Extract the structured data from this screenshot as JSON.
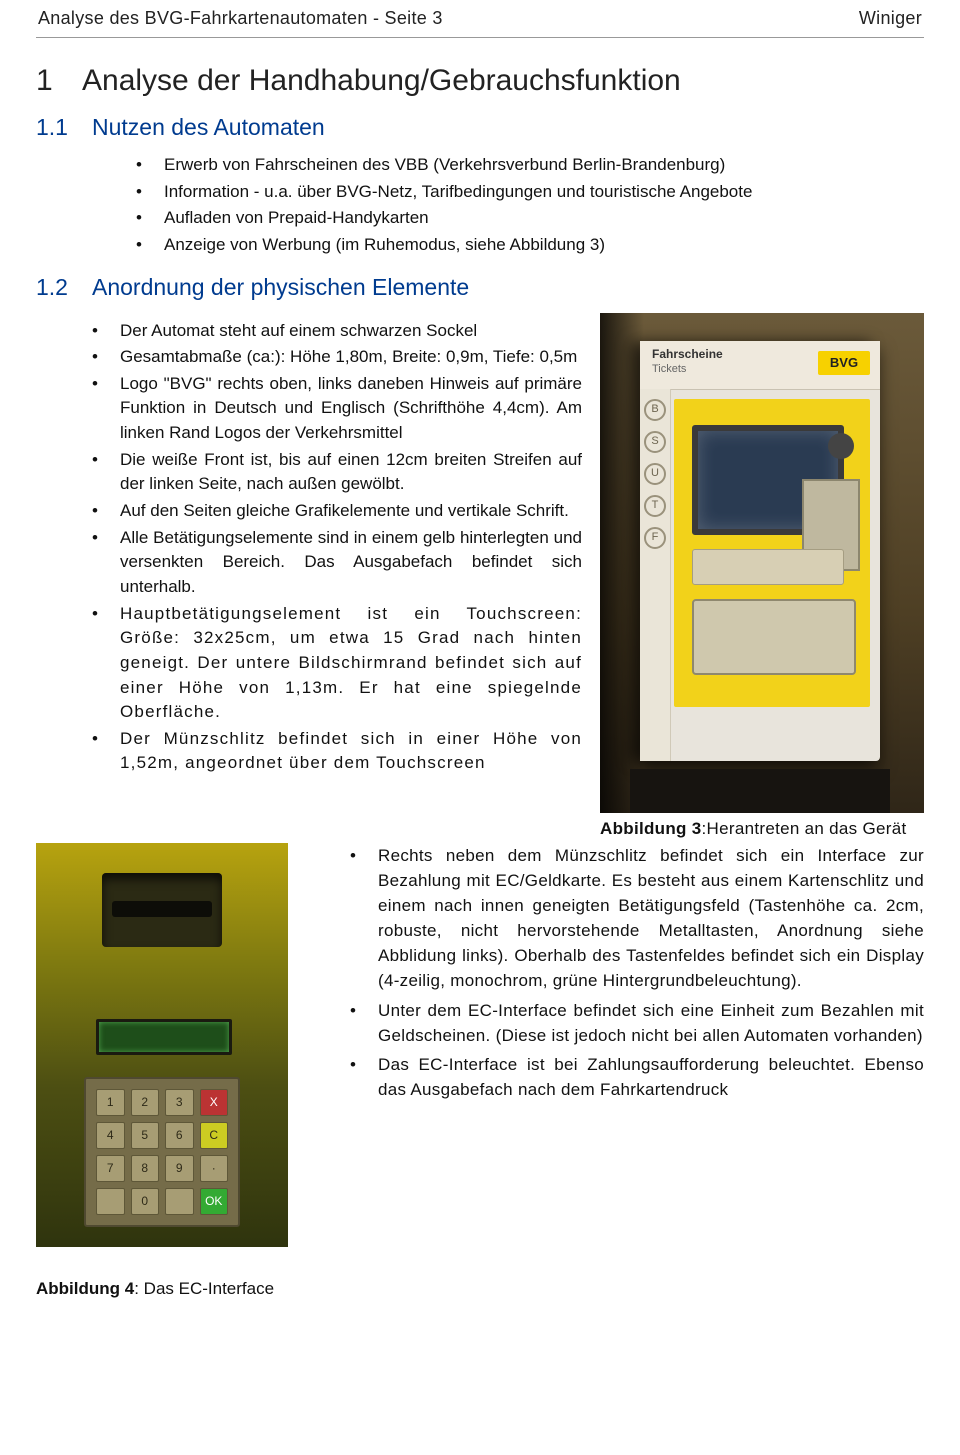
{
  "header": {
    "left": "Analyse des BVG-Fahrkartenautomaten - Seite 3",
    "right": "Winiger"
  },
  "h1": {
    "num": "1",
    "text": "Analyse der Handhabung/Gebrauchsfunktion"
  },
  "sec11": {
    "num": "1.1",
    "title": "Nutzen des Automaten",
    "items": [
      "Erwerb von Fahrscheinen des VBB (Verkehrsverbund Berlin-Brandenburg)",
      "Information - u.a. über BVG-Netz, Tarifbedingungen und touristische Angebote",
      "Aufladen von Prepaid-Handykarten",
      "Anzeige von Werbung (im Ruhemodus, siehe Abbildung 3)"
    ]
  },
  "sec12": {
    "num": "1.2",
    "title": "Anordnung der physischen Elemente",
    "items_left": [
      "Der Automat steht auf einem schwarzen Sockel",
      "Gesamtabmaße (ca:): Höhe 1,80m, Breite: 0,9m, Tiefe: 0,5m",
      "Logo \"BVG\" rechts oben, links daneben Hinweis auf primäre Funktion in Deutsch und Englisch (Schrifthöhe 4,4cm). Am linken Rand Logos der Verkehrsmittel",
      "Die weiße Front ist, bis auf einen 12cm breiten Streifen auf der linken Seite, nach außen gewölbt.",
      "Auf den Seiten gleiche Grafikelemente und vertikale Schrift.",
      "Alle Betätigungselemente sind in einem gelb hinterlegten und versenkten Bereich. Das Ausgabefach befindet sich unterhalb.",
      "Hauptbetätigungselement ist ein Touchscreen: Größe: 32x25cm, um etwa 15 Grad nach hinten geneigt. Der untere Bildschirmrand befindet sich auf einer Höhe von 1,13m. Er hat eine spiegelnde Oberfläche.",
      "Der Münzschlitz befindet sich in einer Höhe von 1,52m, angeordnet über dem Touchscreen"
    ],
    "fig3": {
      "caption_bold": "Abbildung 3",
      "caption_rest": ":Herantreten an das Gerät",
      "top_title": "Fahrscheine",
      "top_sub": "Tickets",
      "bvg_logo": "BVG",
      "side_icons": [
        "B",
        "S",
        "U",
        "T",
        "F"
      ]
    }
  },
  "lower": {
    "items": [
      "Rechts neben dem Münzschlitz befindet sich ein Interface zur Bezahlung mit EC/Geldkarte. Es besteht aus einem Kartenschlitz und einem nach innen geneigten Betätigungsfeld (Tastenhöhe ca. 2cm, robuste, nicht hervorstehende Metalltasten, Anordnung siehe Abblidung links). Oberhalb des Tastenfeldes befindet sich ein Display (4-zeilig, monochrom, grüne Hintergrundbeleuchtung).",
      "Unter dem EC-Interface befindet sich eine Einheit zum Bezahlen mit Geldscheinen. (Diese ist jedoch nicht bei allen Automaten vorhanden)",
      "Das EC-Interface ist bei Zahlungsaufforderung beleuchtet. Ebenso das Ausgabefach nach dem Fahrkartendruck"
    ],
    "fig4": {
      "caption_bold": "Abbildung 4",
      "caption_rest": ": Das EC-Interface",
      "keys": [
        "1",
        "2",
        "3",
        "X",
        "4",
        "5",
        "6",
        "C",
        "7",
        "8",
        "9",
        "·",
        "",
        "0",
        "",
        "OK"
      ]
    }
  }
}
